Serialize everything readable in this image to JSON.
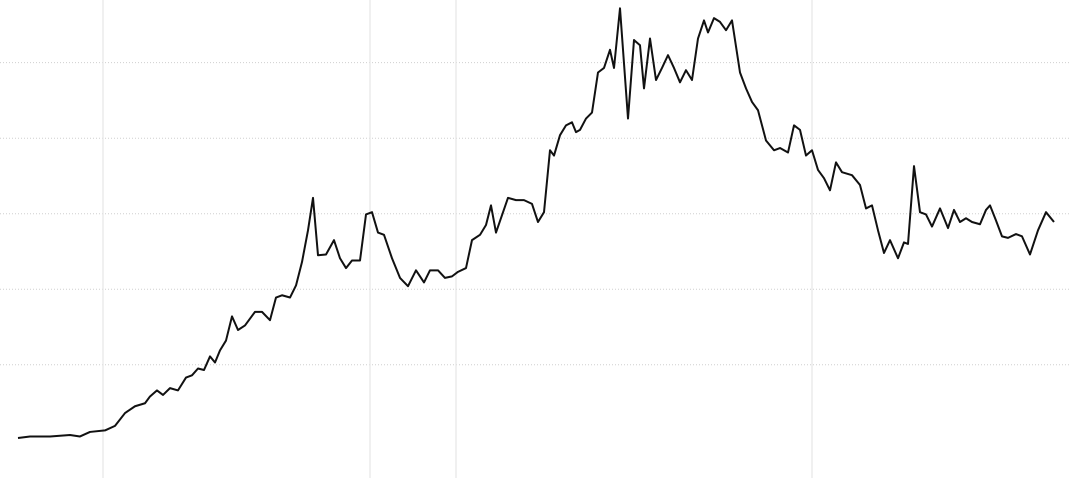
{
  "chart_data": {
    "type": "line",
    "x": [
      0,
      1.2,
      3.2,
      5.2,
      6.2,
      7.2,
      8.7,
      9.7,
      10.7,
      11.7,
      12.7,
      13.2,
      13.9,
      14.5,
      15.2,
      16.0,
      16.8,
      17.4,
      18.0,
      18.6,
      19.2,
      19.7,
      20.2,
      20.8,
      21.4,
      22.0,
      22.7,
      23.7,
      24.4,
      25.2,
      25.8,
      26.4,
      27.2,
      27.8,
      28.4,
      29.0,
      29.5,
      30.0,
      30.8,
      31.6,
      32.2,
      32.8,
      33.4,
      34.2,
      34.8,
      35.4,
      36.0,
      36.6,
      37.4,
      38.2,
      39.0,
      39.8,
      40.6,
      41.2,
      42.0,
      42.7,
      43.4,
      44.0,
      44.8,
      45.4,
      46.2,
      46.8,
      47.3,
      47.8,
      48.4,
      49.0,
      49.8,
      50.6,
      51.4,
      52.0,
      52.6,
      53.2,
      53.6,
      54.2,
      54.8,
      55.4,
      55.8,
      56.2,
      56.8,
      57.4,
      58.0,
      58.6,
      59.2,
      59.6,
      60.2,
      61.0,
      61.6,
      62.2,
      62.6,
      63.2,
      63.8,
      64.4,
      65.0,
      65.6,
      66.2,
      66.8,
      67.4,
      68.0,
      68.6,
      69.0,
      69.6,
      70.2,
      70.8,
      71.4,
      72.2,
      72.8,
      73.4,
      74.0,
      74.8,
      75.6,
      76.2,
      77.0,
      77.6,
      78.2,
      78.8,
      79.4,
      80.0,
      80.6,
      81.2,
      81.8,
      82.4,
      83.4,
      84.2,
      84.8,
      85.4,
      86.0,
      86.6,
      87.2,
      88.0,
      88.6,
      89.0,
      89.6,
      90.2,
      90.8,
      91.4,
      92.2,
      93.0,
      93.6,
      94.2,
      94.8,
      95.4,
      96.2,
      96.8,
      97.2,
      97.8,
      98.4,
      99.0,
      99.8,
      100.4,
      101.2,
      102.0,
      102.8,
      103.6
    ],
    "values": [
      0.03,
      0.05,
      0.05,
      0.07,
      0.05,
      0.11,
      0.13,
      0.19,
      0.36,
      0.45,
      0.49,
      0.58,
      0.66,
      0.6,
      0.69,
      0.66,
      0.83,
      0.86,
      0.95,
      0.93,
      1.11,
      1.03,
      1.19,
      1.32,
      1.64,
      1.46,
      1.52,
      1.7,
      1.7,
      1.59,
      1.89,
      1.92,
      1.89,
      2.05,
      2.36,
      2.78,
      3.21,
      2.45,
      2.46,
      2.65,
      2.41,
      2.28,
      2.38,
      2.38,
      2.99,
      3.02,
      2.75,
      2.72,
      2.41,
      2.15,
      2.04,
      2.25,
      2.09,
      2.25,
      2.25,
      2.15,
      2.17,
      2.23,
      2.28,
      2.65,
      2.72,
      2.85,
      3.11,
      2.75,
      2.98,
      3.21,
      3.18,
      3.18,
      3.13,
      2.89,
      3.02,
      3.84,
      3.77,
      4.04,
      4.17,
      4.21,
      4.08,
      4.11,
      4.26,
      4.34,
      4.87,
      4.93,
      5.17,
      4.93,
      5.72,
      4.26,
      5.3,
      5.23,
      4.66,
      5.32,
      4.77,
      4.93,
      5.1,
      4.93,
      4.74,
      4.9,
      4.77,
      5.32,
      5.56,
      5.4,
      5.59,
      5.54,
      5.43,
      5.56,
      4.87,
      4.66,
      4.48,
      4.37,
      3.97,
      3.84,
      3.87,
      3.81,
      4.17,
      4.11,
      3.77,
      3.84,
      3.58,
      3.47,
      3.31,
      3.68,
      3.55,
      3.51,
      3.38,
      3.07,
      3.11,
      2.78,
      2.48,
      2.65,
      2.41,
      2.62,
      2.6,
      3.63,
      3.02,
      2.99,
      2.83,
      3.07,
      2.81,
      3.05,
      2.89,
      2.94,
      2.89,
      2.86,
      3.05,
      3.11,
      2.91,
      2.7,
      2.68,
      2.73,
      2.7,
      2.46,
      2.78,
      3.02,
      2.89
    ],
    "color": "#111111",
    "xlim": [
      -1.8,
      105.3
    ],
    "ylim": [
      -0.5,
      5.83
    ],
    "xticks": [
      8.5,
      35.2,
      43.8,
      79.4
    ],
    "yticks": [
      1,
      2,
      3,
      4,
      5
    ],
    "grid": true
  }
}
